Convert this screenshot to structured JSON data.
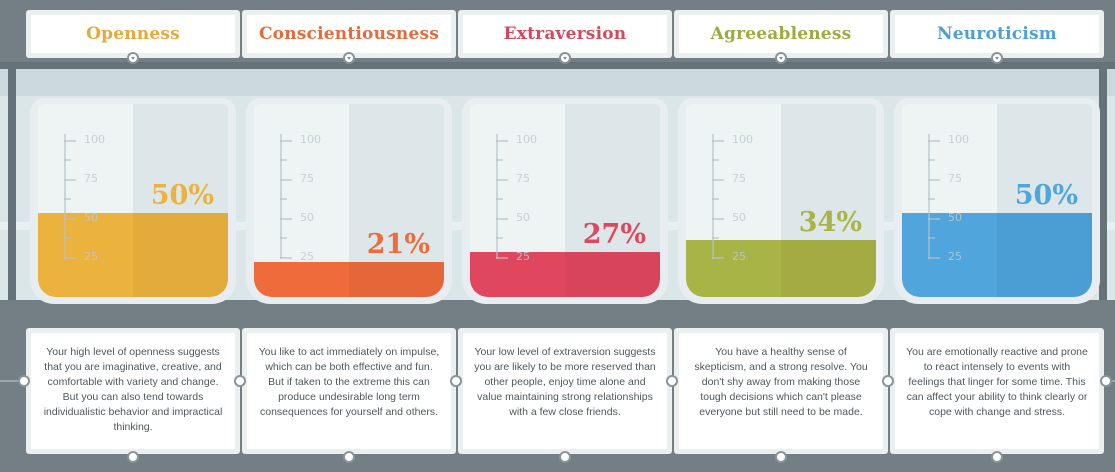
{
  "traits": [
    {
      "title": "Openness",
      "percent": "50%",
      "level": 0.5,
      "color": "#ecb23e",
      "title_color": "#e9a83b",
      "description": "Your high level of openness suggests that you are imaginative, creative, and comfortable with variety and change. But you can also tend towards individualistic behavior and impractical thinking."
    },
    {
      "title": "Conscientiousness",
      "percent": "21%",
      "level": 0.21,
      "color": "#ef6b3b",
      "title_color": "#e66a3a",
      "description": "You like to act immediately on impulse, which can be both effective and fun. But if taken to the extreme this can produce undesirable long term consequences for yourself and others."
    },
    {
      "title": "Extraversion",
      "percent": "27%",
      "level": 0.27,
      "color": "#e0475f",
      "title_color": "#d4475c",
      "description": "Your low level of extraversion suggests you are likely to be more reserved than other people, enjoy time alone and value maintaining strong relationships with a few close friends."
    },
    {
      "title": "Agreeableness",
      "percent": "34%",
      "level": 0.34,
      "color": "#a9b446",
      "title_color": "#9eab3f",
      "description": "You have a healthy sense of skepticism, and a strong resolve. You don't shy away from making those tough decisions which can't please everyone but still need to be made."
    },
    {
      "title": "Neuroticism",
      "percent": "50%",
      "level": 0.5,
      "color": "#4fa5dc",
      "title_color": "#4d9fd4",
      "description": "You are emotionally reactive and prone to react intensely to events with feelings that linger for some time. This can affect your ability to think clearly or cope with change and stress."
    }
  ],
  "scale_labels": [
    "100",
    "75",
    "50",
    "25"
  ]
}
